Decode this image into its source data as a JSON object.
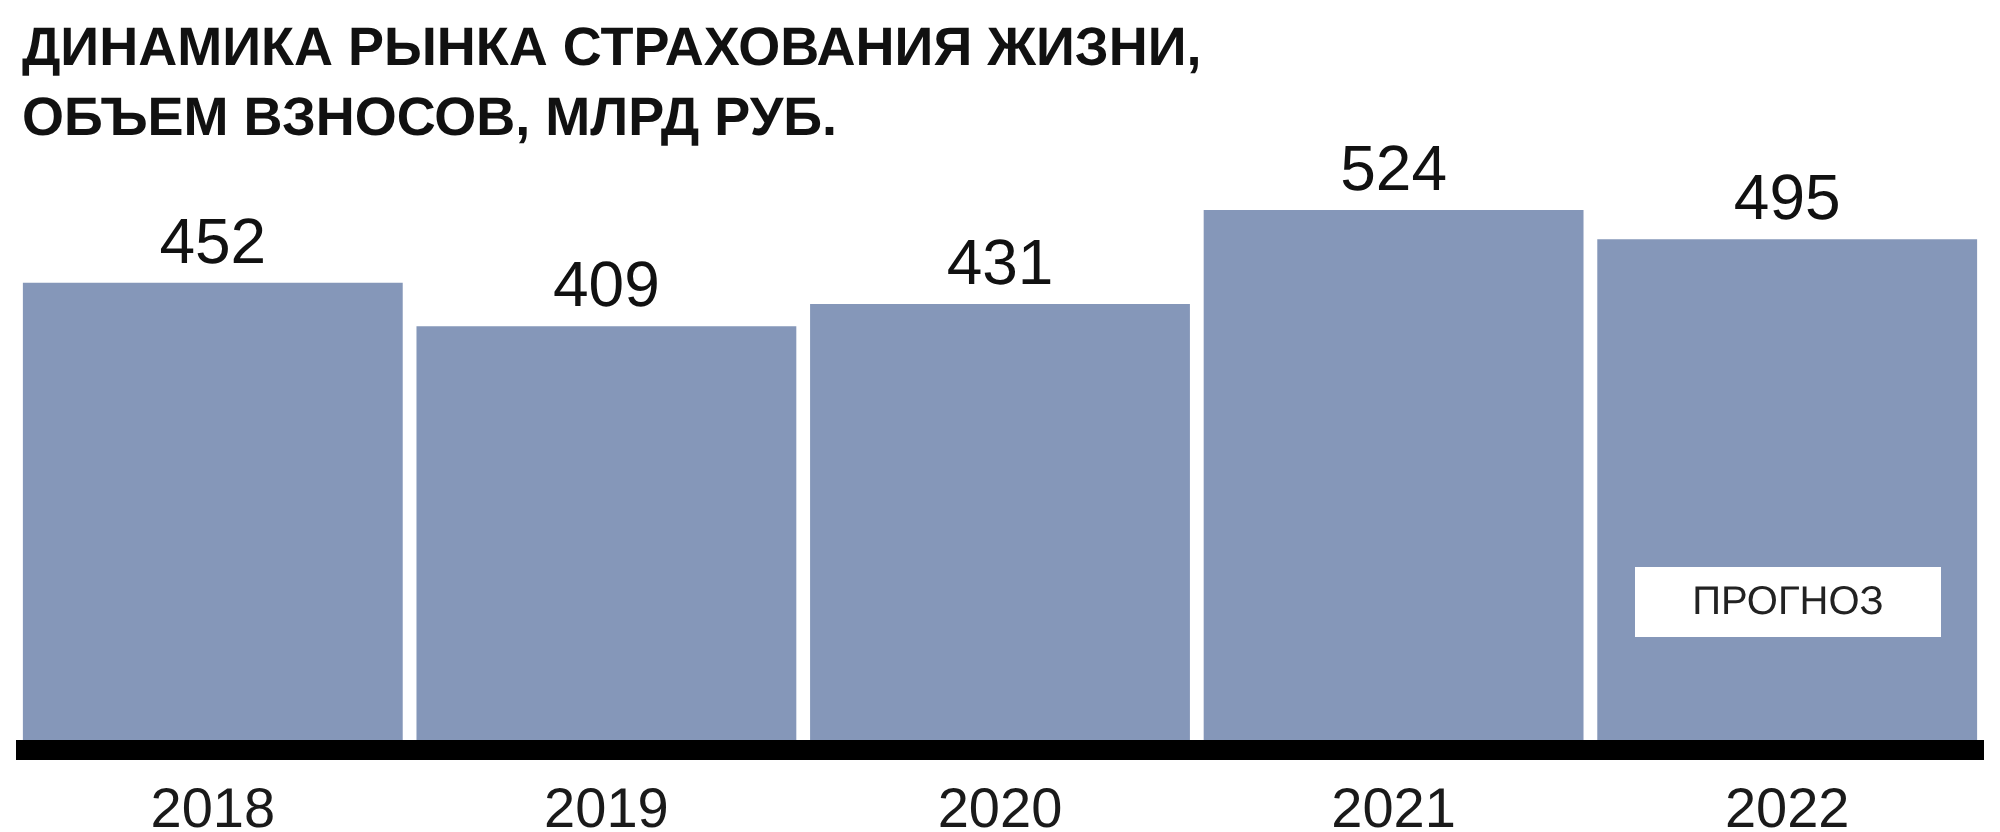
{
  "chart_data": {
    "type": "bar",
    "title": "ДИНАМИКА РЫНКА СТРАХОВАНИЯ ЖИЗНИ, ОБЪЕМ ВЗНОСОВ, МЛРД РУБ.",
    "categories": [
      "2018",
      "2019",
      "2020",
      "2021",
      "2022"
    ],
    "values": [
      452,
      409,
      431,
      524,
      495
    ],
    "color": "#8597b9",
    "data_labels": true,
    "annotations": [
      "ПРОГНОЗ"
    ],
    "tick_labels": "x"
  }
}
